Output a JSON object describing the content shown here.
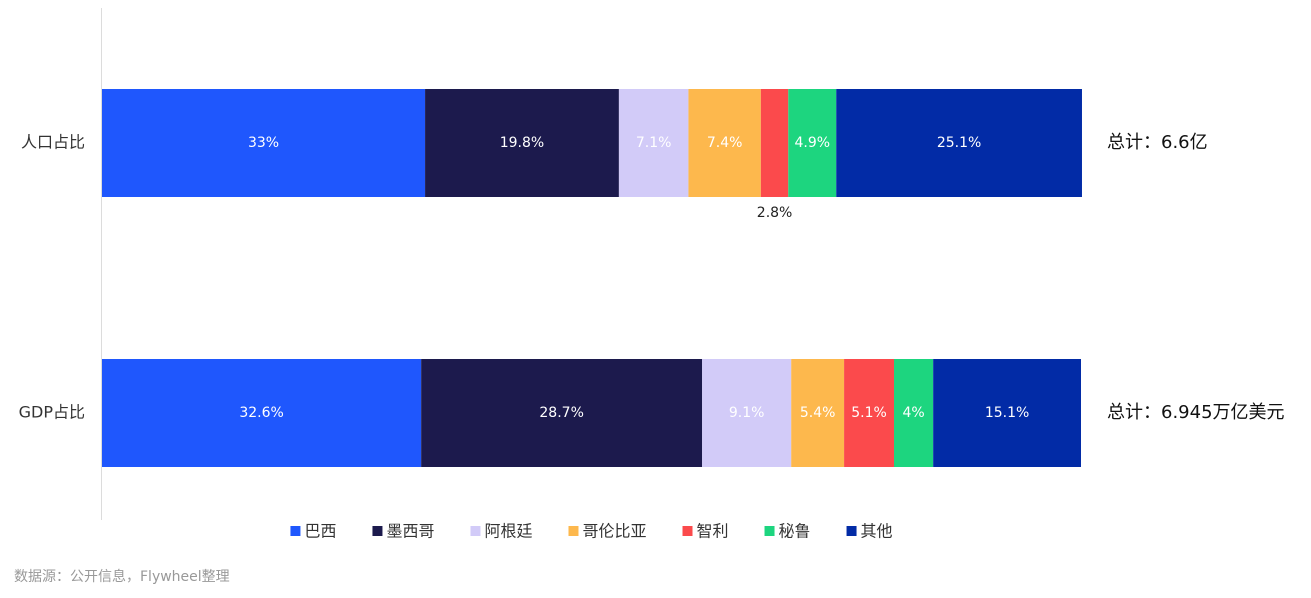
{
  "chart_data": {
    "type": "stacked-bar-horizontal",
    "categories": [
      "人口占比",
      "GDP占比"
    ],
    "xlim": [
      0,
      100
    ],
    "series": [
      {
        "name": "巴西",
        "color": "#1f57fd",
        "values": [
          33,
          32.6
        ],
        "value_labels": [
          "33%",
          "32.6%"
        ]
      },
      {
        "name": "墨西哥",
        "color": "#1c1a4d",
        "values": [
          19.8,
          28.7
        ],
        "value_labels": [
          "19.8%",
          "28.7%"
        ]
      },
      {
        "name": "阿根廷",
        "color": "#d2cbf8",
        "values": [
          7.1,
          9.1
        ],
        "value_labels": [
          "7.1%",
          "9.1%"
        ]
      },
      {
        "name": "哥伦比亚",
        "color": "#fdb84d",
        "values": [
          7.4,
          5.4
        ],
        "value_labels": [
          "7.4%",
          "5.4%"
        ]
      },
      {
        "name": "智利",
        "color": "#fb4a4c",
        "values": [
          2.8,
          5.1
        ],
        "value_labels": [
          "2.8%",
          "5.1%"
        ]
      },
      {
        "name": "秘鲁",
        "color": "#1dd57f",
        "values": [
          4.9,
          4
        ],
        "value_labels": [
          "4.9%",
          "4%"
        ]
      },
      {
        "name": "其他",
        "color": "#022ba6",
        "values": [
          25.1,
          15.1
        ],
        "value_labels": [
          "25.1%",
          "15.1%"
        ]
      }
    ],
    "annotations": [
      "总计：6.6亿",
      "总计：6.945万亿美元"
    ],
    "source": "数据源：公开信息，Flywheel整理"
  }
}
